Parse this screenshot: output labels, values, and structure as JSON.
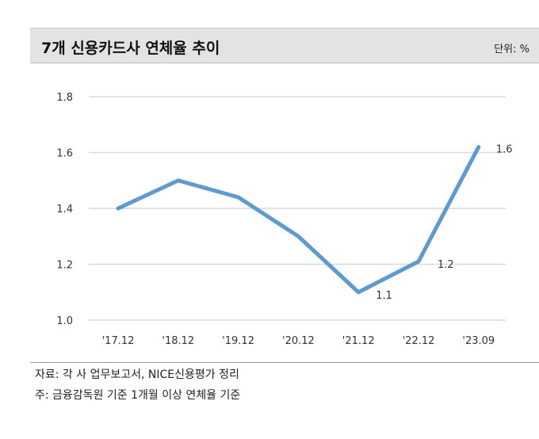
{
  "header": {
    "title": "7개 신용카드사 연체율 추이",
    "unit": "단위: %"
  },
  "footer": {
    "source": "자료: 각 사 업무보고서, NICE신용평가 정리",
    "note": "주: 금융감독원 기준 1개월 이상 연체율 기준"
  },
  "chart_data": {
    "type": "line",
    "categories": [
      "'17.12",
      "'18.12",
      "'19.12",
      "'20.12",
      "'21.12",
      "'22.12",
      "'23.09"
    ],
    "series": [
      {
        "values": [
          1.4,
          1.5,
          1.44,
          1.3,
          1.1,
          1.21,
          1.62
        ]
      }
    ],
    "data_labels": [
      "",
      "",
      "",
      "",
      "1.1",
      "1.2",
      "1.6"
    ],
    "ylim": [
      1.0,
      1.8
    ],
    "yticks": [
      "1.0",
      "1.2",
      "1.4",
      "1.6",
      "1.8"
    ],
    "grid": true,
    "line_color": "#5b9bd5",
    "grid_color": "#d9d9d9"
  }
}
